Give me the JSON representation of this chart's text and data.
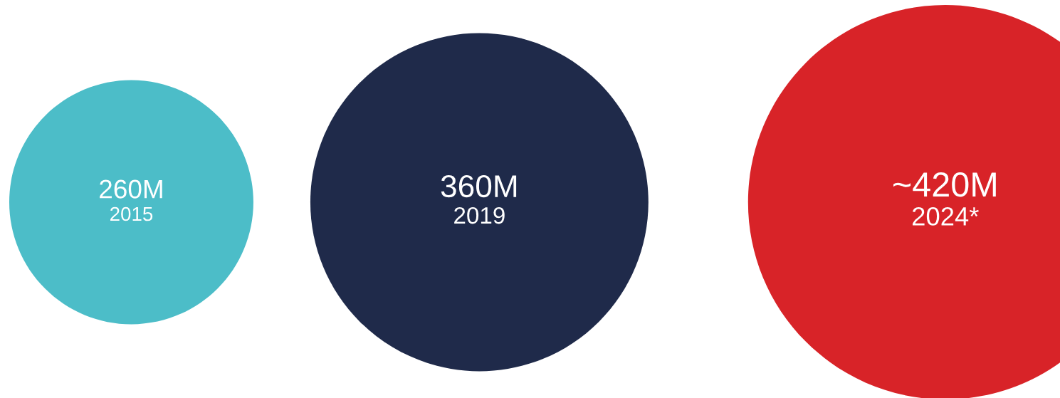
{
  "chart_data": {
    "type": "other",
    "categories": [
      "2015",
      "2019",
      "2024*"
    ],
    "values": [
      260,
      360,
      420
    ],
    "colors": [
      "#4cbdc8",
      "#1f2a4a",
      "#d82328"
    ],
    "value_labels": [
      "260M",
      "360M",
      "~420M"
    ]
  }
}
